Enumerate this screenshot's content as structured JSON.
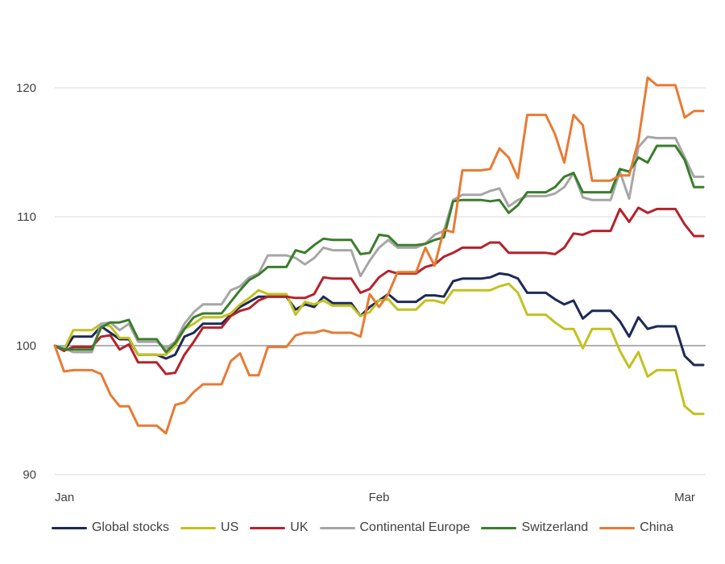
{
  "chart_data": {
    "type": "line",
    "title": "",
    "xlabel": "",
    "ylabel": "",
    "ylim": [
      90,
      120
    ],
    "yticks": [
      90,
      100,
      110,
      120
    ],
    "grid": "horizontal",
    "legend_position": "bottom",
    "baseline": 100,
    "x_month_ticks": [
      {
        "label": "Jan",
        "x": 0
      },
      {
        "label": "Feb",
        "x": 35
      },
      {
        "label": "Mar",
        "x": 68
      }
    ],
    "series": [
      {
        "name": "Global stocks",
        "color": "#1c2a55",
        "values": [
          100,
          99.6,
          100.7,
          100.7,
          100.7,
          101.5,
          101,
          100.5,
          100.5,
          99.3,
          99.3,
          99.3,
          99,
          99.3,
          100.7,
          101,
          101.7,
          101.7,
          101.7,
          102.4,
          103,
          103.4,
          103.8,
          103.8,
          103.8,
          103.8,
          102.8,
          103.2,
          103,
          103.8,
          103.3,
          103.3,
          103.3,
          102.3,
          103,
          103.5,
          104,
          103.4,
          103.4,
          103.4,
          103.9,
          103.9,
          103.8,
          105,
          105.2,
          105.2,
          105.2,
          105.3,
          105.6,
          105.5,
          105.2,
          104.1,
          104.1,
          104.1,
          103.6,
          103.2,
          103.5,
          102.1,
          102.7,
          102.7,
          102.7,
          101.9,
          100.7,
          102.2,
          101.3,
          101.5,
          101.5,
          101.5,
          99.2,
          98.5,
          98.5
        ]
      },
      {
        "name": "US",
        "color": "#c3c11e",
        "values": [
          100,
          99.7,
          101.2,
          101.2,
          101.2,
          101.7,
          101.5,
          100.6,
          100.6,
          99.3,
          99.3,
          99.3,
          99.3,
          100,
          101.3,
          101.7,
          102.2,
          102.2,
          102.2,
          102.5,
          103.2,
          103.7,
          104.3,
          104,
          104,
          104,
          102.4,
          103.4,
          103.2,
          103.5,
          103.1,
          103.1,
          103.1,
          102.3,
          102.6,
          103.5,
          103.6,
          102.8,
          102.8,
          102.8,
          103.5,
          103.5,
          103.3,
          104.3,
          104.3,
          104.3,
          104.3,
          104.3,
          104.6,
          104.8,
          104.1,
          102.4,
          102.4,
          102.4,
          101.8,
          101.3,
          101.3,
          99.8,
          101.3,
          101.3,
          101.3,
          99.6,
          98.3,
          99.5,
          97.6,
          98.1,
          98.1,
          98.1,
          95.3,
          94.7,
          94.7
        ]
      },
      {
        "name": "UK",
        "color": "#b5222b",
        "values": [
          100,
          99.6,
          99.9,
          99.9,
          99.9,
          100.7,
          100.8,
          99.7,
          100.1,
          98.7,
          98.7,
          98.7,
          97.8,
          97.9,
          99.3,
          100.3,
          101.4,
          101.4,
          101.4,
          102.3,
          102.7,
          102.9,
          103.5,
          103.8,
          103.8,
          103.8,
          103.7,
          103.7,
          104,
          105.3,
          105.2,
          105.2,
          105.2,
          104.1,
          104.4,
          105.3,
          105.8,
          105.6,
          105.6,
          105.6,
          106.1,
          106.3,
          106.9,
          107.2,
          107.6,
          107.6,
          107.6,
          108,
          108,
          107.2,
          107.2,
          107.2,
          107.2,
          107.2,
          107.1,
          107.6,
          108.7,
          108.6,
          108.9,
          108.9,
          108.9,
          110.6,
          109.6,
          110.7,
          110.3,
          110.6,
          110.6,
          110.6,
          109.4,
          108.5,
          108.5
        ]
      },
      {
        "name": "Continental Europe",
        "color": "#a6a6a6",
        "values": [
          100,
          99.8,
          99.5,
          99.5,
          99.5,
          101.7,
          101.8,
          101.2,
          101.7,
          100.3,
          100.3,
          100.3,
          99.8,
          100.3,
          101.7,
          102.6,
          103.2,
          103.2,
          103.2,
          104.3,
          104.6,
          105.3,
          105.6,
          107,
          107,
          107,
          106.8,
          106.3,
          106.8,
          107.6,
          107.4,
          107.4,
          107.4,
          105.4,
          106.6,
          107.6,
          108.2,
          107.6,
          107.6,
          107.6,
          107.9,
          108.6,
          108.9,
          111.3,
          111.7,
          111.7,
          111.7,
          112,
          112.2,
          110.8,
          111.3,
          111.6,
          111.6,
          111.6,
          111.8,
          112.3,
          113.4,
          111.5,
          111.3,
          111.3,
          111.3,
          113.5,
          111.4,
          115.4,
          116.2,
          116.1,
          116.1,
          116.1,
          114.6,
          113.1,
          113.1
        ]
      },
      {
        "name": "Switzerland",
        "color": "#3a7d2c",
        "values": [
          100,
          99.7,
          99.7,
          99.7,
          99.7,
          101.4,
          101.8,
          101.8,
          102,
          100.5,
          100.5,
          100.5,
          99.5,
          100.2,
          101.3,
          102.2,
          102.5,
          102.5,
          102.5,
          103.4,
          104.3,
          105.1,
          105.5,
          106.1,
          106.1,
          106.1,
          107.4,
          107.2,
          107.8,
          108.3,
          108.2,
          108.2,
          108.2,
          107.1,
          107.2,
          108.6,
          108.5,
          107.8,
          107.8,
          107.8,
          107.9,
          108.2,
          108.4,
          111.2,
          111.3,
          111.3,
          111.3,
          111.2,
          111.3,
          110.3,
          110.9,
          111.9,
          111.9,
          111.9,
          112.3,
          113.1,
          113.4,
          111.9,
          111.9,
          111.9,
          111.9,
          113.7,
          113.5,
          114.6,
          114.2,
          115.5,
          115.5,
          115.5,
          114.4,
          112.3,
          112.3
        ]
      },
      {
        "name": "China",
        "color": "#e77b34",
        "values": [
          100,
          98,
          98.1,
          98.1,
          98.1,
          97.8,
          96.2,
          95.3,
          95.3,
          93.8,
          93.8,
          93.8,
          93.2,
          95.4,
          95.6,
          96.4,
          97,
          97,
          97,
          98.8,
          99.4,
          97.7,
          97.7,
          99.9,
          99.9,
          99.9,
          100.8,
          101,
          101,
          101.2,
          101,
          101,
          101,
          100.7,
          104,
          103,
          104,
          105.7,
          105.7,
          105.7,
          107.6,
          106.2,
          109,
          108.8,
          113.6,
          113.6,
          113.6,
          113.7,
          115.3,
          114.6,
          113,
          117.9,
          117.9,
          117.9,
          116.4,
          114.2,
          117.9,
          117.1,
          112.8,
          112.8,
          112.8,
          113.2,
          113.2,
          115.9,
          120.8,
          120.2,
          120.2,
          120.2,
          117.7,
          118.2,
          118.2
        ]
      }
    ]
  }
}
